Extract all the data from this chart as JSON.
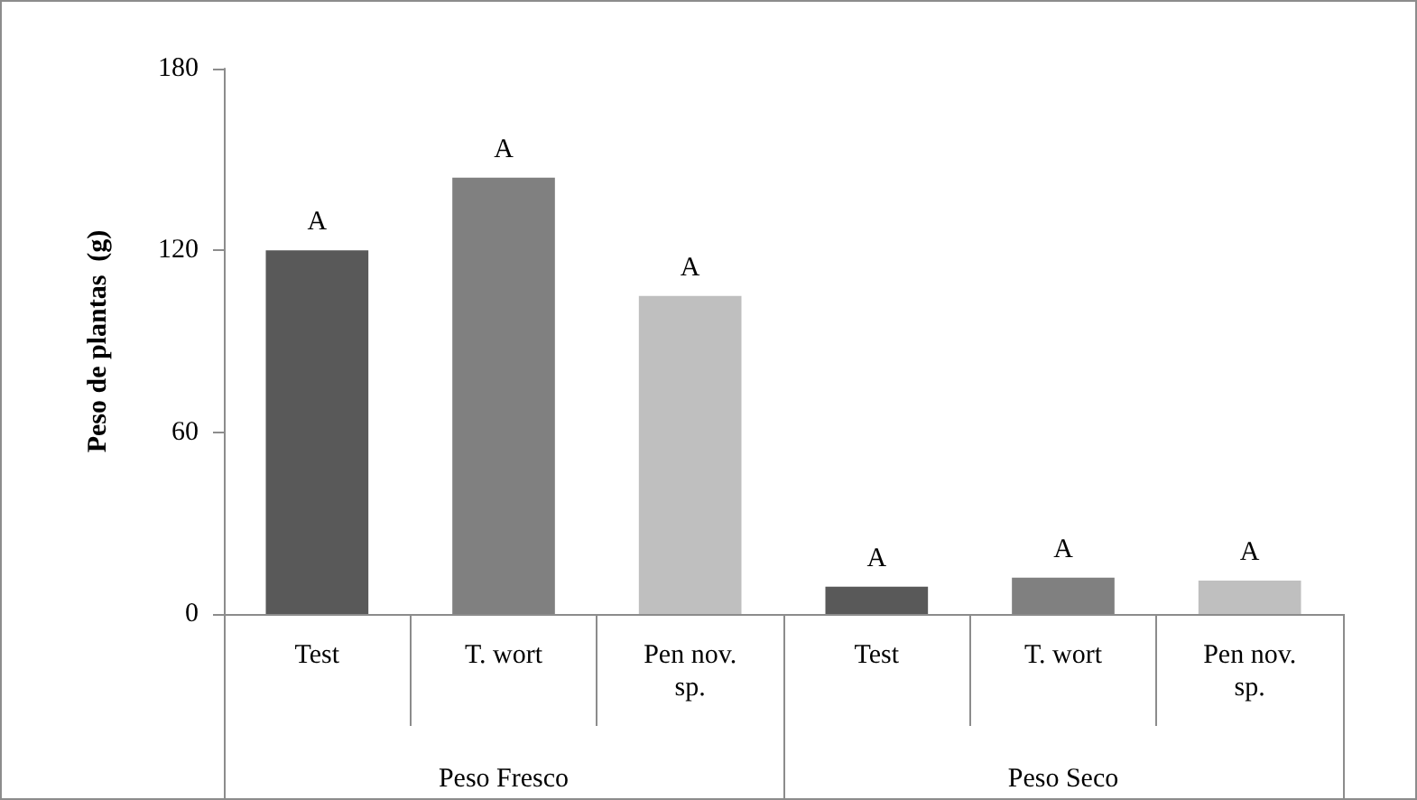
{
  "chart_data": {
    "type": "bar",
    "categories": [
      "Test",
      "T. wort",
      "Pen nov.\nsp.",
      "Test",
      "T. wort",
      "Pen nov.\nsp."
    ],
    "values": [
      120,
      144,
      105,
      9,
      12,
      11
    ],
    "colors": [
      "#595959",
      "#808080",
      "#bfbfbf",
      "#595959",
      "#808080",
      "#bfbfbf"
    ],
    "value_labels": [
      "A",
      "A",
      "A",
      "A",
      "A",
      "A"
    ],
    "annotations": [
      "Peso Fresco",
      "Peso Seco"
    ],
    "ylabel": "Peso de plantas  (g)",
    "ylim": [
      0,
      180
    ],
    "yticks": [
      0,
      60,
      120,
      180
    ],
    "grid": false
  }
}
